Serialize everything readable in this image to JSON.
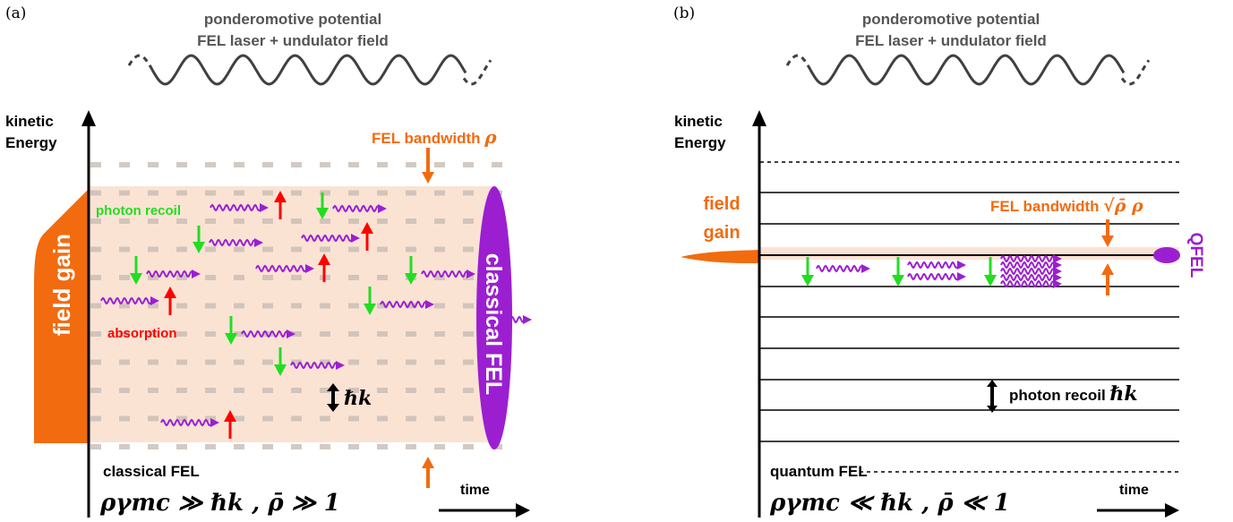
{
  "colors": {
    "orange": "#f26b0f",
    "band": "#fbe3d4",
    "purple": "#9b1fd1",
    "green": "#22dd22",
    "red": "#ff0000",
    "dash": "#c9bdb5",
    "axis": "#000000",
    "wave": "#404040",
    "label": "#555555"
  },
  "panel_a": {
    "tag": "(a)",
    "header_line1": "ponderomotive potential",
    "header_line2": "FEL laser + undulator field",
    "y_axis_line1": "kinetic",
    "y_axis_line2": "Energy",
    "bandwidth_label": "FEL bandwidth ",
    "bandwidth_symbol": "ρ",
    "field_gain_label": "field gain",
    "photon_recoil_label": "photon recoil",
    "absorption_label": "absorption",
    "hbar_k_label": "ℏk",
    "classical_fel_vertical": "classical FEL",
    "bottom_label": "classical FEL",
    "condition": "ργmc ≫ ℏk , ρ̄ ≫ 1",
    "time_label": "time"
  },
  "panel_b": {
    "tag": "(b)",
    "header_line1": "ponderomotive potential",
    "header_line2": "FEL laser + undulator field",
    "y_axis_line1": "kinetic",
    "y_axis_line2": "Energy",
    "field_gain_line1": "field",
    "field_gain_line2": "gain",
    "bandwidth_label": "FEL bandwidth ",
    "bandwidth_symbol": "√ρ̄ ρ",
    "qfel_label": "QFEL",
    "photon_recoil_label": "photon recoil ",
    "hbar_k_label": "ℏk",
    "bottom_label": "quantum FEL",
    "condition": "ργmc ≪ ℏk , ρ̄ ≪ 1",
    "time_label": "time"
  }
}
